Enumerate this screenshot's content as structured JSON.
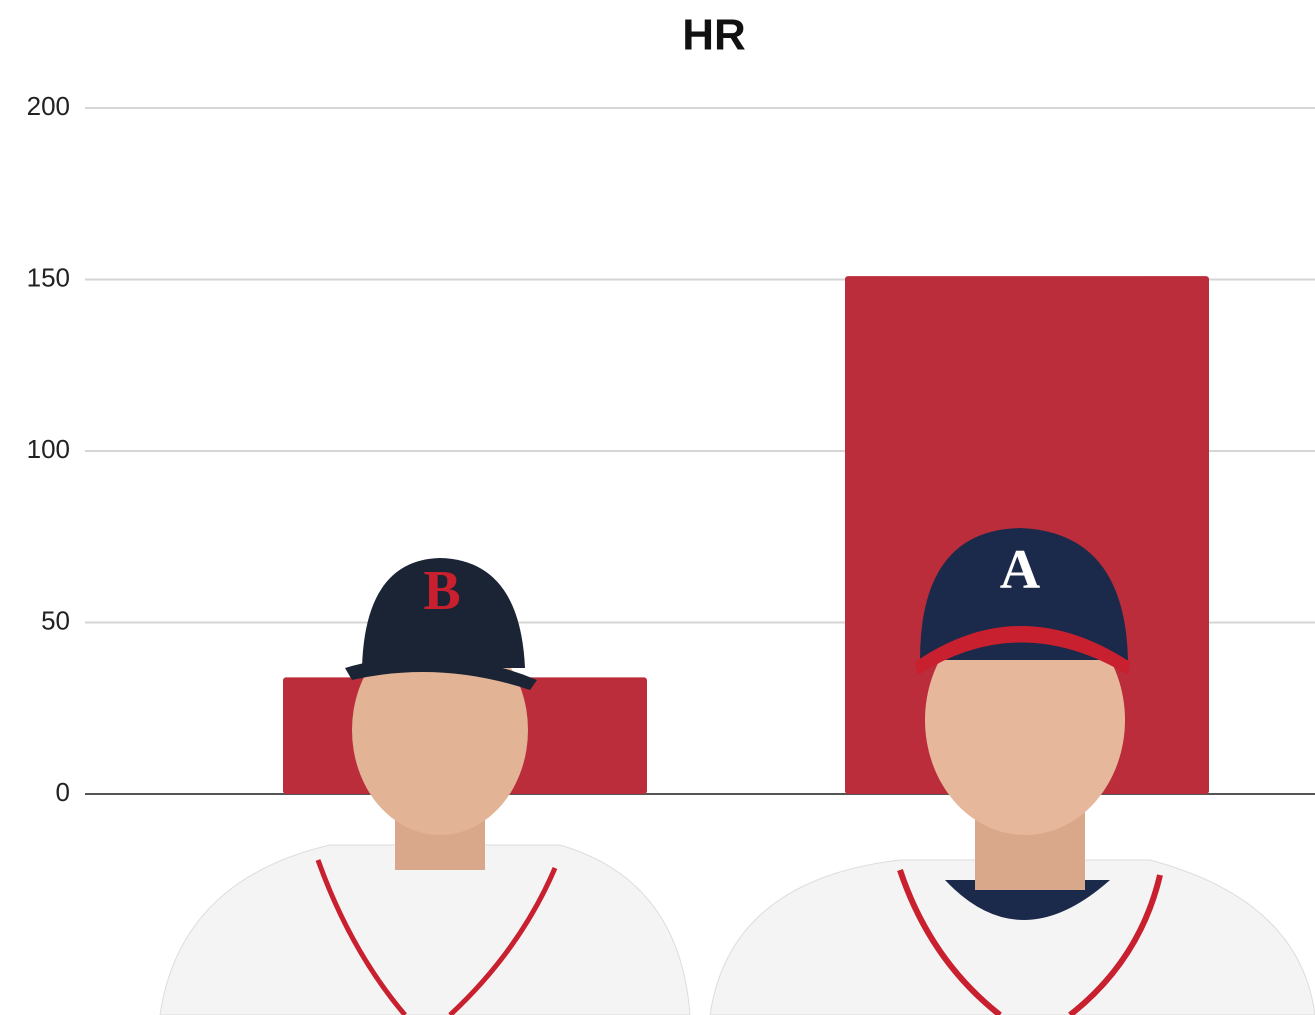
{
  "chart_data": {
    "type": "bar",
    "title": "HR",
    "categories": [
      null,
      null
    ],
    "values": [
      34,
      151
    ],
    "color": "#bb2d3b",
    "ylim": [
      0,
      200
    ],
    "yticks": [
      0,
      50,
      100,
      150,
      200
    ],
    "grid": true
  }
}
